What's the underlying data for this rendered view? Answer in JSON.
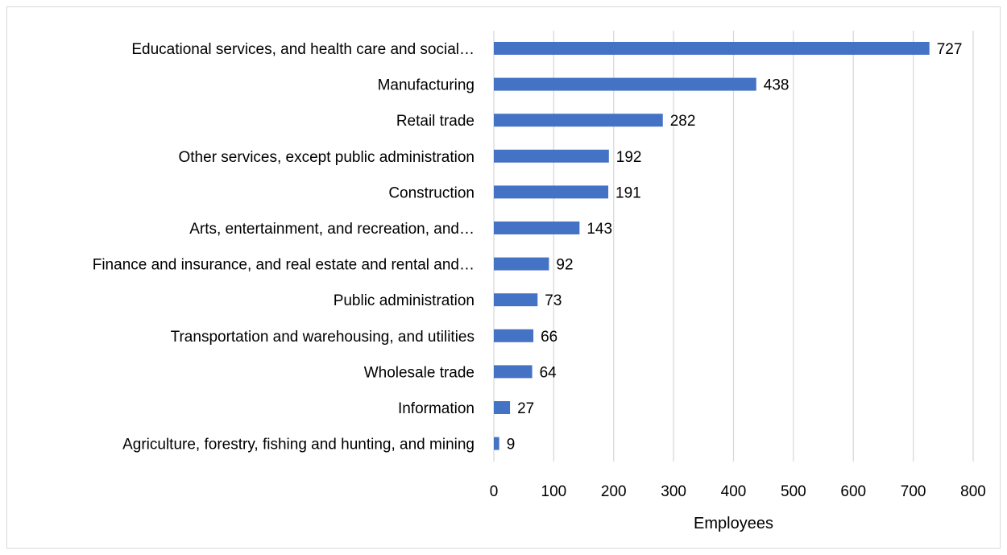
{
  "chart_data": {
    "type": "bar",
    "orientation": "horizontal",
    "categories": [
      "Educational services, and health care and social…",
      "Manufacturing",
      "Retail trade",
      "Other services, except public administration",
      "Construction",
      "Arts, entertainment, and recreation, and…",
      "Finance and insurance, and real estate and rental and…",
      "Public administration",
      "Transportation and warehousing, and utilities",
      "Wholesale trade",
      "Information",
      "Agriculture, forestry, fishing and hunting, and mining"
    ],
    "values": [
      727,
      438,
      282,
      192,
      191,
      143,
      92,
      73,
      66,
      64,
      27,
      9
    ],
    "data_labels": [
      "727",
      "438",
      "282",
      "192",
      "191",
      "143",
      "92",
      "73",
      "66",
      "64",
      "27",
      "9"
    ],
    "xlabel": "Employees",
    "ylabel": "",
    "xlim": [
      0,
      800
    ],
    "x_ticks": [
      0,
      100,
      200,
      300,
      400,
      500,
      600,
      700,
      800
    ],
    "x_tick_labels": [
      "0",
      "100",
      "200",
      "300",
      "400",
      "500",
      "600",
      "700",
      "800"
    ],
    "grid": "vertical",
    "legend": "none",
    "bar_color": "#4472c4",
    "grid_color": "#d9d9d9"
  }
}
